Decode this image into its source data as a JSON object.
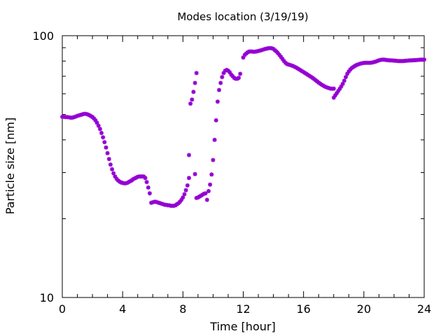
{
  "chart_data": {
    "type": "scatter",
    "title": "Modes location (3/19/19)",
    "xlabel": "Time [hour]",
    "ylabel": "Particle size [nm]",
    "xlim": [
      0,
      24
    ],
    "ylim": [
      10,
      100
    ],
    "y_scale": "log",
    "x_ticks": [
      0,
      4,
      8,
      12,
      16,
      20,
      24
    ],
    "y_ticks": [
      10,
      100
    ],
    "grid": false,
    "legend": "none",
    "marker_color": "#9400d3",
    "marker": "star",
    "series": [
      {
        "points": [
          [
            0.0,
            49.0
          ],
          [
            0.1,
            49.0
          ],
          [
            0.2,
            48.9
          ],
          [
            0.3,
            48.9
          ],
          [
            0.4,
            48.8
          ],
          [
            0.5,
            48.7
          ],
          [
            0.6,
            48.6
          ],
          [
            0.7,
            48.7
          ],
          [
            0.8,
            48.9
          ],
          [
            0.9,
            49.1
          ],
          [
            1.0,
            49.4
          ],
          [
            1.1,
            49.6
          ],
          [
            1.2,
            49.8
          ],
          [
            1.3,
            50.0
          ],
          [
            1.4,
            50.2
          ],
          [
            1.5,
            50.3
          ],
          [
            1.6,
            50.2
          ],
          [
            1.7,
            50.0
          ],
          [
            1.8,
            49.7
          ],
          [
            1.9,
            49.3
          ],
          [
            2.0,
            48.9
          ],
          [
            2.1,
            48.3
          ],
          [
            2.2,
            47.5
          ],
          [
            2.3,
            46.5
          ],
          [
            2.4,
            45.3
          ],
          [
            2.5,
            44.0
          ],
          [
            2.6,
            42.5
          ],
          [
            2.7,
            40.9
          ],
          [
            2.8,
            39.2
          ],
          [
            2.9,
            37.4
          ],
          [
            3.0,
            35.6
          ],
          [
            3.1,
            33.8
          ],
          [
            3.2,
            32.2
          ],
          [
            3.3,
            30.9
          ],
          [
            3.4,
            29.8
          ],
          [
            3.5,
            29.0
          ],
          [
            3.6,
            28.4
          ],
          [
            3.7,
            28.0
          ],
          [
            3.8,
            27.7
          ],
          [
            3.9,
            27.5
          ],
          [
            4.0,
            27.4
          ],
          [
            4.1,
            27.3
          ],
          [
            4.2,
            27.3
          ],
          [
            4.3,
            27.4
          ],
          [
            4.4,
            27.6
          ],
          [
            4.5,
            27.8
          ],
          [
            4.6,
            28.0
          ],
          [
            4.7,
            28.3
          ],
          [
            4.8,
            28.5
          ],
          [
            4.9,
            28.7
          ],
          [
            5.0,
            28.9
          ],
          [
            5.1,
            29.0
          ],
          [
            5.2,
            29.0
          ],
          [
            5.3,
            29.0
          ],
          [
            5.4,
            29.0
          ],
          [
            5.5,
            28.6
          ],
          [
            5.6,
            27.6
          ],
          [
            5.7,
            26.3
          ],
          [
            5.8,
            25.0
          ],
          [
            5.9,
            23.0
          ],
          [
            6.0,
            23.1
          ],
          [
            6.1,
            23.2
          ],
          [
            6.2,
            23.2
          ],
          [
            6.3,
            23.1
          ],
          [
            6.4,
            23.0
          ],
          [
            6.5,
            22.9
          ],
          [
            6.6,
            22.8
          ],
          [
            6.7,
            22.7
          ],
          [
            6.8,
            22.6
          ],
          [
            6.9,
            22.6
          ],
          [
            7.0,
            22.5
          ],
          [
            7.1,
            22.5
          ],
          [
            7.2,
            22.4
          ],
          [
            7.3,
            22.4
          ],
          [
            7.4,
            22.4
          ],
          [
            7.5,
            22.5
          ],
          [
            7.6,
            22.7
          ],
          [
            7.7,
            22.9
          ],
          [
            7.8,
            23.2
          ],
          [
            7.9,
            23.6
          ],
          [
            8.0,
            24.1
          ],
          [
            8.1,
            24.8
          ],
          [
            8.2,
            25.7
          ],
          [
            8.3,
            26.8
          ],
          [
            8.4,
            28.6
          ],
          [
            8.4,
            35.0
          ],
          [
            8.5,
            55.0
          ],
          [
            8.6,
            57.0
          ],
          [
            8.7,
            61.0
          ],
          [
            8.8,
            66.0
          ],
          [
            8.9,
            72.0
          ],
          [
            8.8,
            29.6
          ],
          [
            8.9,
            24.0
          ],
          [
            9.0,
            24.1
          ],
          [
            9.1,
            24.3
          ],
          [
            9.2,
            24.5
          ],
          [
            9.3,
            24.7
          ],
          [
            9.4,
            24.9
          ],
          [
            9.5,
            25.0
          ],
          [
            9.6,
            23.6
          ],
          [
            9.7,
            25.5
          ],
          [
            9.8,
            27.0
          ],
          [
            9.9,
            29.5
          ],
          [
            10.0,
            33.5
          ],
          [
            10.1,
            40.0
          ],
          [
            10.2,
            47.5
          ],
          [
            10.3,
            56.0
          ],
          [
            10.4,
            62.0
          ],
          [
            10.5,
            66.0
          ],
          [
            10.6,
            69.5
          ],
          [
            10.7,
            72.0
          ],
          [
            10.8,
            73.5
          ],
          [
            10.9,
            74.0
          ],
          [
            11.0,
            73.5
          ],
          [
            11.1,
            72.5
          ],
          [
            11.2,
            71.0
          ],
          [
            11.3,
            70.0
          ],
          [
            11.4,
            69.0
          ],
          [
            11.5,
            68.5
          ],
          [
            11.6,
            68.5
          ],
          [
            11.7,
            69.0
          ],
          [
            11.8,
            71.5
          ],
          [
            12.0,
            82.5
          ],
          [
            12.1,
            84.5
          ],
          [
            12.2,
            85.5
          ],
          [
            12.3,
            86.5
          ],
          [
            12.4,
            87.0
          ],
          [
            12.5,
            87.0
          ],
          [
            12.6,
            87.0
          ],
          [
            12.7,
            86.8
          ],
          [
            12.8,
            86.9
          ],
          [
            12.9,
            87.1
          ],
          [
            13.0,
            87.4
          ],
          [
            13.1,
            87.7
          ],
          [
            13.2,
            88.0
          ],
          [
            13.3,
            88.4
          ],
          [
            13.4,
            88.8
          ],
          [
            13.5,
            89.1
          ],
          [
            13.6,
            89.4
          ],
          [
            13.7,
            89.6
          ],
          [
            13.8,
            89.7
          ],
          [
            13.9,
            89.5
          ],
          [
            14.0,
            89.0
          ],
          [
            14.1,
            88.0
          ],
          [
            14.2,
            87.0
          ],
          [
            14.3,
            85.8
          ],
          [
            14.4,
            84.4
          ],
          [
            14.5,
            83.0
          ],
          [
            14.6,
            81.5
          ],
          [
            14.7,
            80.0
          ],
          [
            14.8,
            78.8
          ],
          [
            14.9,
            78.0
          ],
          [
            15.0,
            77.6
          ],
          [
            15.1,
            77.3
          ],
          [
            15.2,
            77.0
          ],
          [
            15.3,
            76.6
          ],
          [
            15.4,
            76.1
          ],
          [
            15.5,
            75.6
          ],
          [
            15.6,
            75.0
          ],
          [
            15.7,
            74.4
          ],
          [
            15.8,
            73.8
          ],
          [
            15.9,
            73.2
          ],
          [
            16.0,
            72.6
          ],
          [
            16.1,
            72.0
          ],
          [
            16.2,
            71.4
          ],
          [
            16.3,
            70.8
          ],
          [
            16.4,
            70.2
          ],
          [
            16.5,
            69.6
          ],
          [
            16.6,
            69.0
          ],
          [
            16.7,
            68.3
          ],
          [
            16.8,
            67.6
          ],
          [
            16.9,
            66.9
          ],
          [
            17.0,
            66.2
          ],
          [
            17.1,
            65.6
          ],
          [
            17.2,
            65.0
          ],
          [
            17.3,
            64.5
          ],
          [
            17.4,
            64.0
          ],
          [
            17.5,
            63.6
          ],
          [
            17.6,
            63.3
          ],
          [
            17.7,
            63.0
          ],
          [
            17.8,
            62.8
          ],
          [
            17.9,
            62.7
          ],
          [
            18.0,
            62.8
          ],
          [
            18.0,
            58.0
          ],
          [
            18.1,
            59.2
          ],
          [
            18.2,
            60.3
          ],
          [
            18.3,
            61.5
          ],
          [
            18.4,
            62.7
          ],
          [
            18.5,
            64.0
          ],
          [
            18.6,
            65.5
          ],
          [
            18.7,
            67.3
          ],
          [
            18.8,
            69.5
          ],
          [
            18.9,
            71.5
          ],
          [
            19.0,
            73.0
          ],
          [
            19.1,
            74.3
          ],
          [
            19.2,
            75.3
          ],
          [
            19.3,
            76.0
          ],
          [
            19.4,
            76.6
          ],
          [
            19.5,
            77.2
          ],
          [
            19.6,
            77.6
          ],
          [
            19.7,
            78.0
          ],
          [
            19.8,
            78.3
          ],
          [
            19.9,
            78.5
          ],
          [
            20.0,
            78.7
          ],
          [
            20.1,
            78.8
          ],
          [
            20.2,
            78.8
          ],
          [
            20.3,
            78.8
          ],
          [
            20.4,
            78.8
          ],
          [
            20.5,
            78.9
          ],
          [
            20.6,
            79.1
          ],
          [
            20.7,
            79.4
          ],
          [
            20.8,
            79.7
          ],
          [
            20.9,
            80.1
          ],
          [
            21.0,
            80.5
          ],
          [
            21.1,
            80.8
          ],
          [
            21.2,
            81.0
          ],
          [
            21.3,
            81.0
          ],
          [
            21.4,
            80.9
          ],
          [
            21.5,
            80.7
          ],
          [
            21.6,
            80.6
          ],
          [
            21.7,
            80.5
          ],
          [
            21.8,
            80.5
          ],
          [
            21.9,
            80.4
          ],
          [
            22.0,
            80.3
          ],
          [
            22.1,
            80.2
          ],
          [
            22.2,
            80.1
          ],
          [
            22.3,
            80.0
          ],
          [
            22.4,
            80.0
          ],
          [
            22.5,
            80.0
          ],
          [
            22.6,
            80.0
          ],
          [
            22.7,
            80.1
          ],
          [
            22.8,
            80.2
          ],
          [
            22.9,
            80.3
          ],
          [
            23.0,
            80.4
          ],
          [
            23.1,
            80.5
          ],
          [
            23.2,
            80.5
          ],
          [
            23.3,
            80.6
          ],
          [
            23.4,
            80.6
          ],
          [
            23.5,
            80.7
          ],
          [
            23.6,
            80.8
          ],
          [
            23.7,
            80.9
          ],
          [
            23.8,
            81.0
          ],
          [
            23.9,
            81.0
          ],
          [
            24.0,
            81.0
          ]
        ]
      }
    ]
  }
}
